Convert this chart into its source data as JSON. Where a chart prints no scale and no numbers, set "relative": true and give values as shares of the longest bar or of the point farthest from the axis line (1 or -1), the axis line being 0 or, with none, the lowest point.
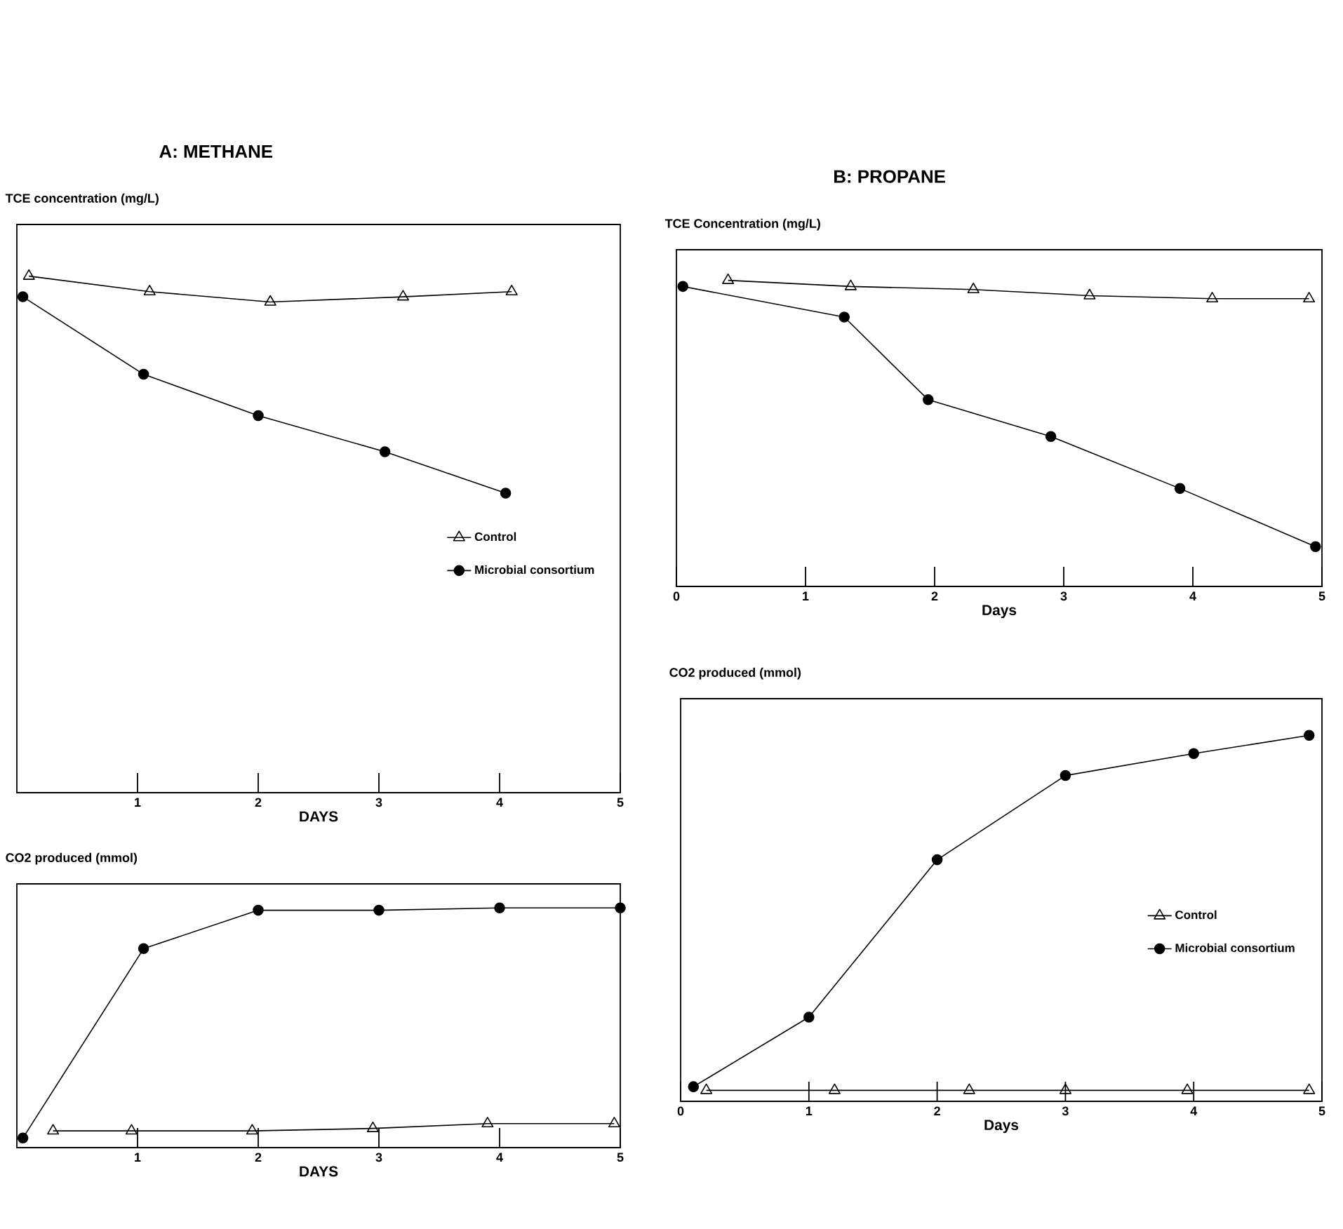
{
  "chart_data": [
    {
      "type": "line",
      "title": "A: METHANE",
      "ylabel": "TCE concentration (mg/L)",
      "xlabel": "DAYS",
      "relative": true,
      "xlim": [
        0,
        5
      ],
      "xticks": [
        1,
        2,
        3,
        4,
        5
      ],
      "legend": "center right",
      "series": [
        {
          "name": "Control",
          "color": "#000000",
          "marker": "triangle",
          "x": [
            0.1,
            1.1,
            2.1,
            3.2,
            4.1
          ],
          "values": [
            1,
            0.97,
            0.95,
            0.96,
            0.97
          ]
        },
        {
          "name": "Microbial consortium",
          "color": "#000000",
          "marker": "circle",
          "x": [
            0.05,
            1.05,
            2.0,
            3.05,
            4.05
          ],
          "values": [
            0.96,
            0.81,
            0.73,
            0.66,
            0.58
          ]
        }
      ]
    },
    {
      "type": "line",
      "ylabel": "CO2 produced (mmol)",
      "xlabel": "DAYS",
      "relative": true,
      "xlim": [
        0,
        5
      ],
      "xticks": [
        1,
        2,
        3,
        4,
        5
      ],
      "series": [
        {
          "color": "#000000",
          "marker": "triangle",
          "x": [
            0.3,
            0.95,
            1.95,
            2.95,
            3.9,
            4.95
          ],
          "values": [
            0.07,
            0.07,
            0.07,
            0.08,
            0.1,
            0.1
          ]
        },
        {
          "color": "#000000",
          "marker": "circle",
          "x": [
            0.05,
            1.05,
            2.0,
            3.0,
            4.0,
            5.0
          ],
          "values": [
            0.04,
            0.83,
            0.99,
            0.99,
            1,
            1
          ]
        }
      ]
    },
    {
      "type": "line",
      "title": "B: PROPANE",
      "ylabel": "TCE Concentration (mg/L)",
      "xlabel": "Days",
      "relative": true,
      "xlim": [
        0,
        5
      ],
      "xticks": [
        0,
        1,
        2,
        3,
        4,
        5
      ],
      "series": [
        {
          "color": "#000000",
          "marker": "triangle",
          "x": [
            0.4,
            1.35,
            2.3,
            3.2,
            4.15,
            4.9
          ],
          "values": [
            1,
            0.98,
            0.97,
            0.95,
            0.94,
            0.94
          ]
        },
        {
          "color": "#000000",
          "marker": "circle",
          "x": [
            0.05,
            1.3,
            1.95,
            2.9,
            3.9,
            4.95
          ],
          "values": [
            0.98,
            0.88,
            0.61,
            0.49,
            0.32,
            0.13
          ]
        }
      ]
    },
    {
      "type": "line",
      "ylabel": "CO2 produced (mmol)",
      "xlabel": "Days",
      "relative": true,
      "xlim": [
        0,
        5
      ],
      "xticks": [
        0,
        1,
        2,
        3,
        4,
        5
      ],
      "legend": "center right",
      "series": [
        {
          "name": "Control",
          "color": "#000000",
          "marker": "triangle",
          "x": [
            0.2,
            1.2,
            2.25,
            3.0,
            3.95,
            4.9
          ],
          "values": [
            0.03,
            0.03,
            0.03,
            0.03,
            0.03,
            0.03
          ]
        },
        {
          "name": "Microbial consortium",
          "color": "#000000",
          "marker": "circle",
          "x": [
            0.1,
            1.0,
            2.0,
            3.0,
            4.0,
            4.9
          ],
          "values": [
            0.04,
            0.23,
            0.66,
            0.89,
            0.95,
            1
          ]
        }
      ]
    }
  ]
}
